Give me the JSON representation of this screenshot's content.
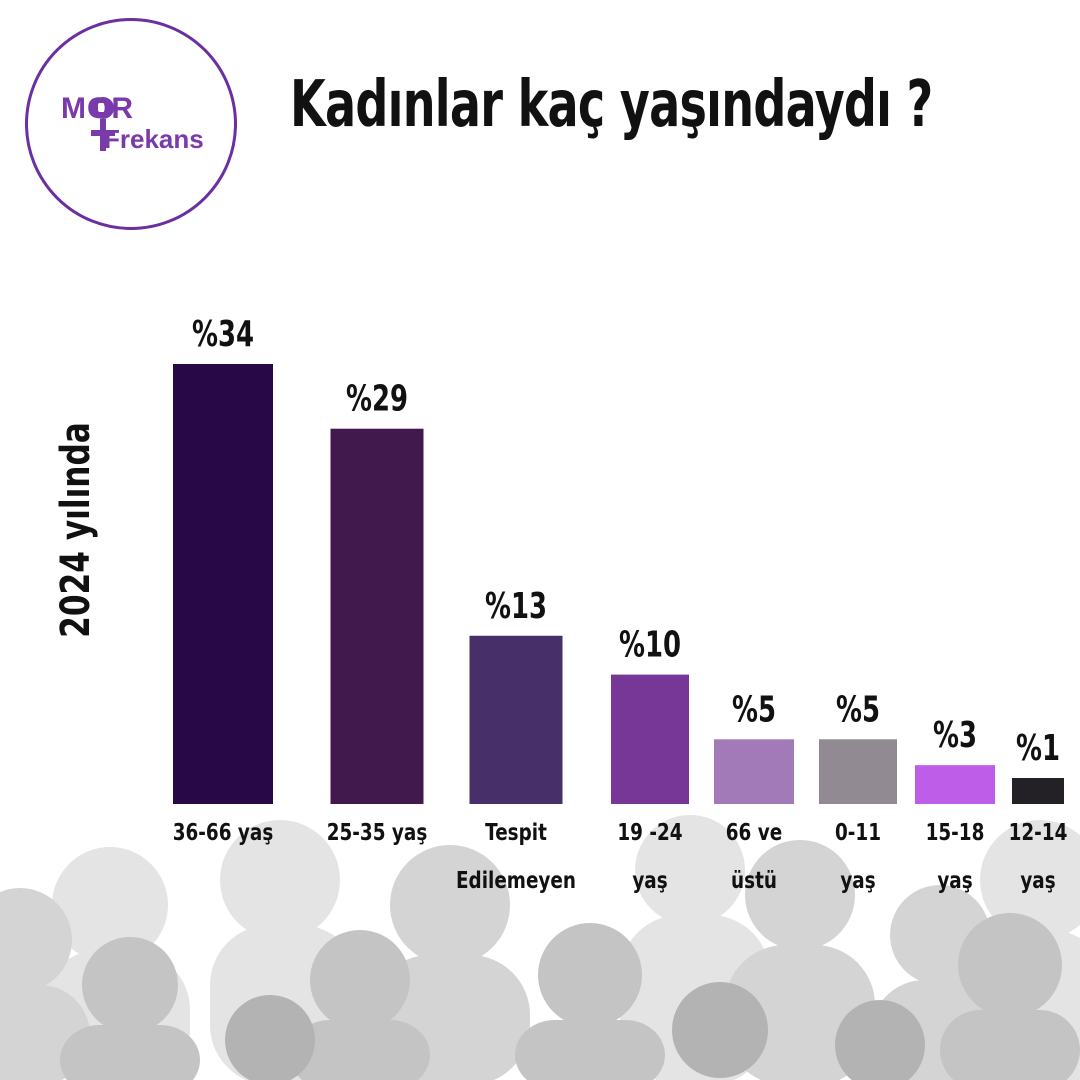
{
  "logo": {
    "line1": "MOR",
    "line2": "Frekans"
  },
  "title": "Kadınlar kaç yaşındaydı ?",
  "side_label": "2024 yılında",
  "chart_data": {
    "type": "bar",
    "title": "Kadınlar kaç yaşındaydı ?",
    "ylabel": "2024 yılında",
    "xlabel": "",
    "categories": [
      [
        "36-66 yaş"
      ],
      [
        "25-35 yaş"
      ],
      [
        "Tespit",
        "Edilemeyen"
      ],
      [
        "19 -24",
        "yaş"
      ],
      [
        "66 ve",
        "üstü"
      ],
      [
        "0-11",
        "yaş"
      ],
      [
        "15-18",
        "yaş"
      ],
      [
        "12-14",
        "yaş"
      ]
    ],
    "values": [
      34,
      29,
      13,
      10,
      5,
      5,
      3,
      1
    ],
    "value_labels": [
      "%34",
      "%29",
      "%13",
      "%10",
      "%5",
      "%5",
      "%3",
      "%1"
    ],
    "colors": [
      "#280846",
      "#42194d",
      "#47306a",
      "#773797",
      "#a27ab8",
      "#928a93",
      "#bd5de8",
      "#232126"
    ],
    "ylim": [
      0,
      34
    ],
    "grid": false,
    "legend": "none"
  }
}
